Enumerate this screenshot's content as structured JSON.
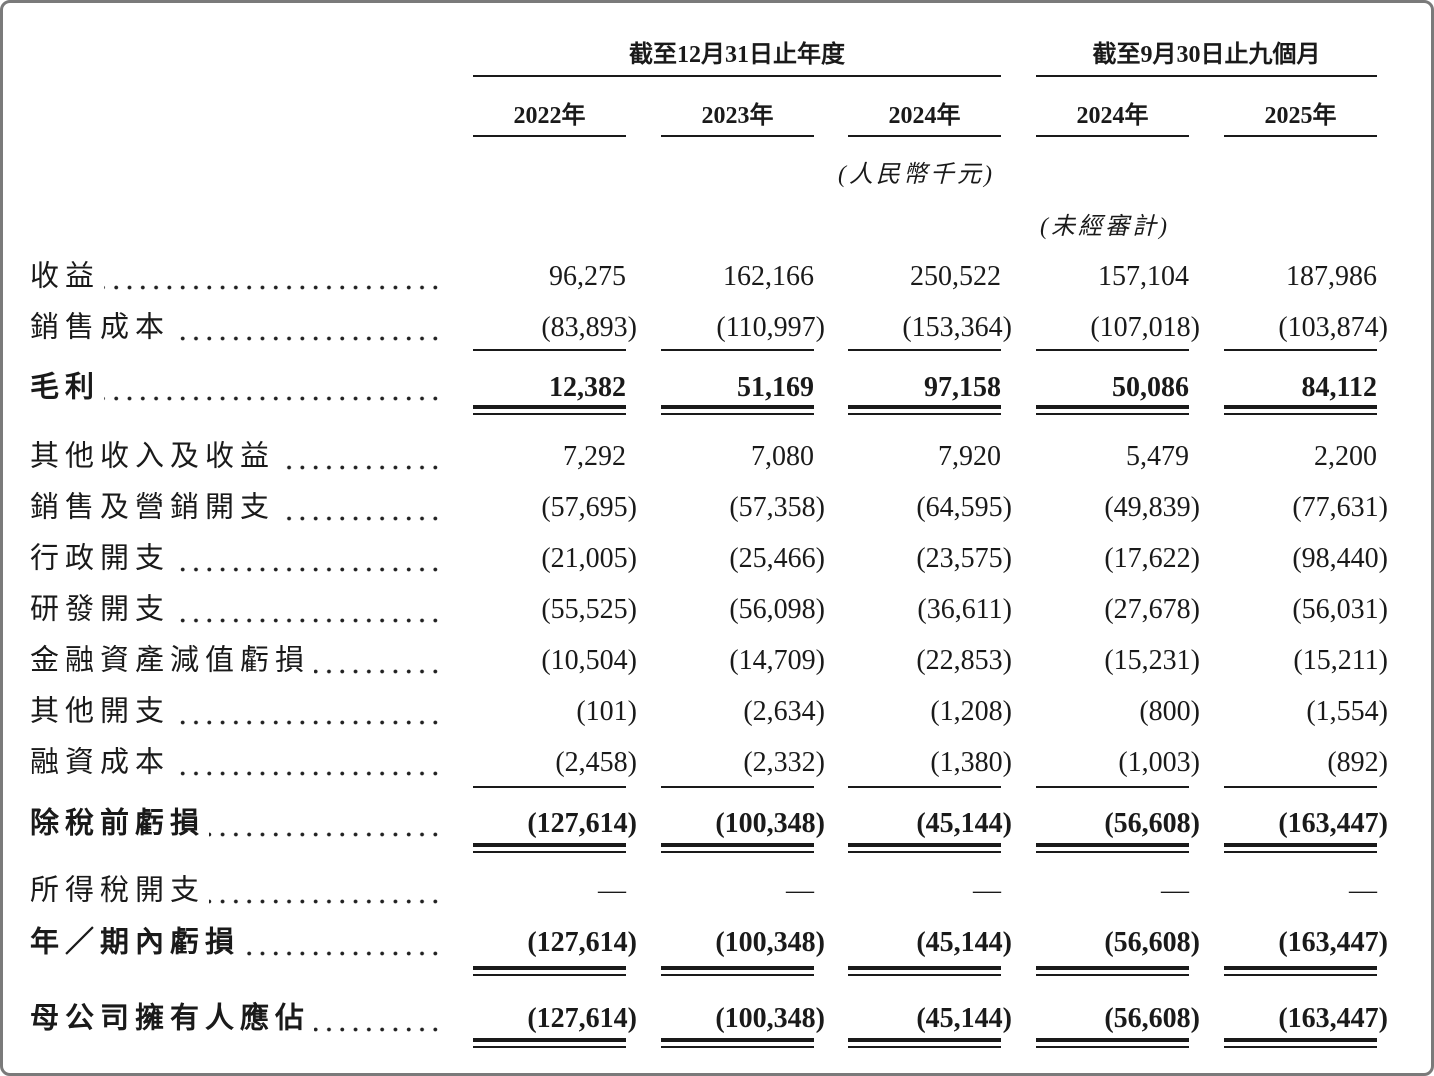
{
  "header": {
    "groups": [
      "截至12月31日止年度",
      "截至9月30日止九個月"
    ],
    "years": [
      "2022年",
      "2023年",
      "2024年",
      "2024年",
      "2025年"
    ],
    "currency": "(人民幣千元)",
    "audit_note": "(未經審計)"
  },
  "table": {
    "rows": [
      {
        "label": "收益",
        "values": [
          "96,275",
          "162,166",
          "250,522",
          "157,104",
          "187,986"
        ]
      },
      {
        "label": "銷售成本",
        "values": [
          "(83,893)",
          "(110,997)",
          "(153,364)",
          "(107,018)",
          "(103,874)"
        ]
      },
      {
        "label": "毛利",
        "values": [
          "12,382",
          "51,169",
          "97,158",
          "50,086",
          "84,112"
        ]
      },
      {
        "label": "其他收入及收益",
        "values": [
          "7,292",
          "7,080",
          "7,920",
          "5,479",
          "2,200"
        ]
      },
      {
        "label": "銷售及營銷開支",
        "values": [
          "(57,695)",
          "(57,358)",
          "(64,595)",
          "(49,839)",
          "(77,631)"
        ]
      },
      {
        "label": "行政開支",
        "values": [
          "(21,005)",
          "(25,466)",
          "(23,575)",
          "(17,622)",
          "(98,440)"
        ]
      },
      {
        "label": "研發開支",
        "values": [
          "(55,525)",
          "(56,098)",
          "(36,611)",
          "(27,678)",
          "(56,031)"
        ]
      },
      {
        "label": "金融資產減值虧損",
        "values": [
          "(10,504)",
          "(14,709)",
          "(22,853)",
          "(15,231)",
          "(15,211)"
        ]
      },
      {
        "label": "其他開支",
        "values": [
          "(101)",
          "(2,634)",
          "(1,208)",
          "(800)",
          "(1,554)"
        ]
      },
      {
        "label": "融資成本",
        "values": [
          "(2,458)",
          "(2,332)",
          "(1,380)",
          "(1,003)",
          "(892)"
        ]
      },
      {
        "label": "除稅前虧損",
        "values": [
          "(127,614)",
          "(100,348)",
          "(45,144)",
          "(56,608)",
          "(163,447)"
        ]
      },
      {
        "label": "所得稅開支",
        "values": [
          "—",
          "—",
          "—",
          "—",
          "—"
        ]
      },
      {
        "label": "年／期內虧損",
        "values": [
          "(127,614)",
          "(100,348)",
          "(45,144)",
          "(56,608)",
          "(163,447)"
        ]
      },
      {
        "label": "母公司擁有人應佔",
        "values": [
          "(127,614)",
          "(100,348)",
          "(45,144)",
          "(56,608)",
          "(163,447)"
        ]
      }
    ]
  }
}
